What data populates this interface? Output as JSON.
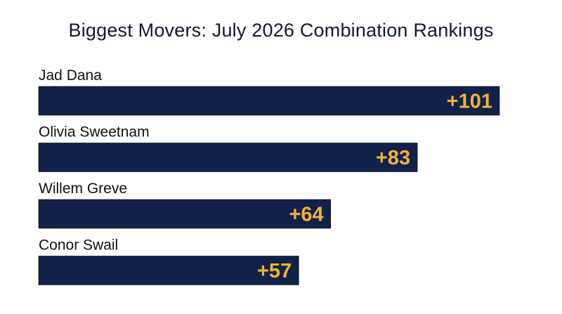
{
  "chart_data": {
    "type": "bar",
    "orientation": "horizontal",
    "title": "Biggest Movers: July 2026 Combination Rankings",
    "categories": [
      "Jad Dana",
      "Olivia Sweetnam",
      "Willem Greve",
      "Conor Swail"
    ],
    "values": [
      101,
      83,
      64,
      57
    ],
    "value_labels": [
      "+101",
      "+83",
      "+64",
      "+57"
    ],
    "xlim": [
      0,
      101
    ],
    "grid": false,
    "legend": "none",
    "bar_color": "#10224a",
    "value_label_color": "#f5b233"
  }
}
